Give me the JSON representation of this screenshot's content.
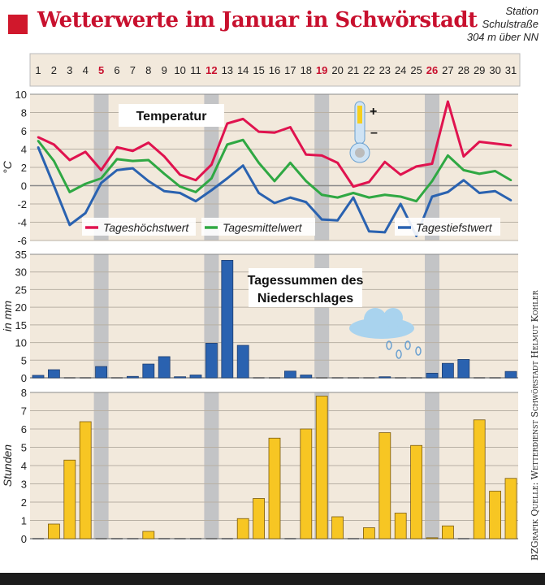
{
  "header": {
    "title": "Wetterwerte im Januar in Schwörstadt",
    "station": [
      "Station",
      "Schulstraße",
      "304 m über NN"
    ]
  },
  "credit": "BZGrafik   Quelle: Wetterdienst Schwörstadt Helmut Kohler",
  "colors": {
    "max": "#e0134f",
    "mean": "#2fa843",
    "min": "#2a62b0",
    "rain": "#2a62b0",
    "sun": "#f7c623",
    "sunday": "#c8102e",
    "bg": "#f2e9dc",
    "band": "#c3c4c6"
  },
  "chart_data": [
    {
      "type": "line",
      "title": "Temperatur",
      "ylabel": "°C",
      "ylim": [
        -6,
        10
      ],
      "yticks": [
        10,
        8,
        6,
        4,
        2,
        0,
        -2,
        -4,
        -6
      ],
      "x": [
        1,
        2,
        3,
        4,
        5,
        6,
        7,
        8,
        9,
        10,
        11,
        12,
        13,
        14,
        15,
        16,
        17,
        18,
        19,
        20,
        21,
        22,
        23,
        24,
        25,
        26,
        27,
        28,
        29,
        30,
        31
      ],
      "sundays": [
        5,
        12,
        19,
        26
      ],
      "series": [
        {
          "name": "Tageshöchstwert",
          "values": [
            5.3,
            4.5,
            2.8,
            3.7,
            1.7,
            4.2,
            3.8,
            4.7,
            3.2,
            1.2,
            0.6,
            2.3,
            6.8,
            7.3,
            5.9,
            5.8,
            6.4,
            3.4,
            3.3,
            2.5,
            -0.1,
            0.4,
            2.6,
            1.2,
            2.1,
            2.4,
            9.2,
            3.2,
            4.8,
            4.6,
            4.4
          ]
        },
        {
          "name": "Tagesmittelwert",
          "values": [
            4.9,
            2.7,
            -0.7,
            0.2,
            0.8,
            2.9,
            2.7,
            2.8,
            1.3,
            -0.1,
            -0.7,
            0.8,
            4.5,
            5.0,
            2.5,
            0.5,
            2.5,
            0.5,
            -1.0,
            -1.3,
            -0.8,
            -1.3,
            -1.0,
            -1.2,
            -1.7,
            0.5,
            3.3,
            1.7,
            1.3,
            1.6,
            0.6
          ]
        },
        {
          "name": "Tagestiefstwert",
          "values": [
            4.2,
            0.0,
            -4.3,
            -3.0,
            0.3,
            1.7,
            1.9,
            0.5,
            -0.6,
            -0.8,
            -1.7,
            -0.5,
            0.8,
            2.2,
            -0.8,
            -1.9,
            -1.3,
            -1.8,
            -3.7,
            -3.8,
            -1.3,
            -5.0,
            -5.1,
            -2.0,
            -5.5,
            -1.2,
            -0.7,
            0.6,
            -0.8,
            -0.6,
            -1.6
          ]
        }
      ]
    },
    {
      "type": "bar",
      "title": "Tagessummen des Niederschlages",
      "ylabel": "in mm",
      "ylim": [
        0,
        35
      ],
      "yticks": [
        35,
        30,
        25,
        20,
        15,
        10,
        5,
        0
      ],
      "values": [
        0.7,
        2.3,
        0,
        0,
        3.2,
        0,
        0.4,
        3.9,
        6.0,
        0.3,
        0.8,
        9.8,
        33.3,
        9.2,
        0,
        0,
        1.9,
        0.8,
        0,
        0,
        0,
        0,
        0.3,
        0,
        0,
        1.3,
        4.1,
        5.2,
        0,
        0,
        1.8
      ]
    },
    {
      "type": "bar",
      "title": "",
      "ylabel": "Stunden",
      "ylim": [
        0,
        8
      ],
      "yticks": [
        8,
        7,
        6,
        5,
        4,
        3,
        2,
        1,
        0
      ],
      "values": [
        0,
        0.8,
        4.3,
        6.4,
        0,
        0,
        0,
        0.4,
        0,
        0,
        0,
        0,
        0,
        1.1,
        2.2,
        5.5,
        0,
        6.0,
        7.8,
        1.2,
        0,
        0.6,
        5.8,
        1.4,
        5.1,
        0.05,
        0.7,
        0,
        6.5,
        2.6,
        3.3
      ]
    }
  ]
}
